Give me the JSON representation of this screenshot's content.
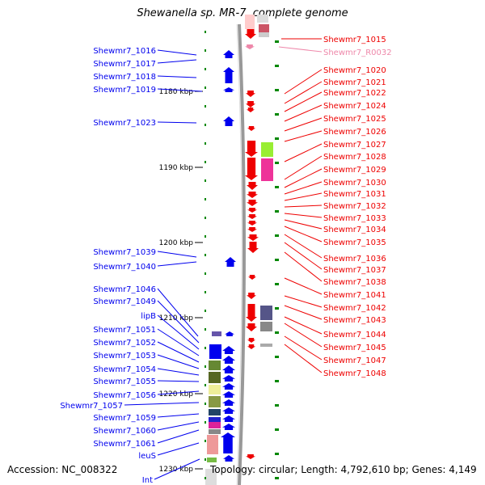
{
  "title": "Shewanella sp. MR-7, complete genome",
  "footer": {
    "accession": "Accession: NC_008322",
    "summary": "Topology: circular; Length: 4,792,610 bp; Genes: 4,149"
  },
  "colors": {
    "forward": "#0000ee",
    "reverse": "#ee0000",
    "rna": "#ee88aa",
    "tick": "#008800",
    "backbone": "#999999"
  },
  "ruler": [
    {
      "label": "1180 kbp"
    },
    {
      "label": "1190 kbp"
    },
    {
      "label": "1200 kbp"
    },
    {
      "label": "1210 kbp"
    },
    {
      "label": "1220 kbp"
    },
    {
      "label": "1230 kbp"
    }
  ],
  "left_labels": [
    "Shewmr7_1016",
    "Shewmr7_1017",
    "Shewmr7_1018",
    "Shewmr7_1019",
    "Shewmr7_1023",
    "Shewmr7_1039",
    "Shewmr7_1040",
    "Shewmr7_1046",
    "Shewmr7_1049",
    "lipB",
    "Shewmr7_1051",
    "Shewmr7_1052",
    "Shewmr7_1053",
    "Shewmr7_1054",
    "Shewmr7_1055",
    "Shewmr7_1056",
    "Shewmr7_1057",
    "Shewmr7_1059",
    "Shewmr7_1060",
    "Shewmr7_1061",
    "leuS",
    "Int"
  ],
  "right_labels": [
    "Shewmr7_1015",
    "Shewmr7_R0032",
    "Shewmr7_1020",
    "Shewmr7_1021",
    "Shewmr7_1022",
    "Shewmr7_1024",
    "Shewmr7_1025",
    "Shewmr7_1026",
    "Shewmr7_1027",
    "Shewmr7_1028",
    "Shewmr7_1029",
    "Shewmr7_1030",
    "Shewmr7_1031",
    "Shewmr7_1032",
    "Shewmr7_1033",
    "Shewmr7_1034",
    "Shewmr7_1035",
    "Shewmr7_1036",
    "Shewmr7_1037",
    "Shewmr7_1038",
    "Shewmr7_1041",
    "Shewmr7_1042",
    "Shewmr7_1043",
    "Shewmr7_1044",
    "Shewmr7_1045",
    "Shewmr7_1047",
    "Shewmr7_1048"
  ]
}
